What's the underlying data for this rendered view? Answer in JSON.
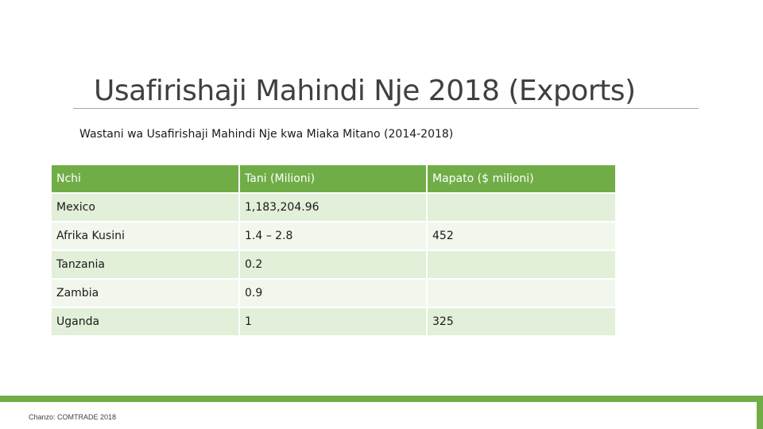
{
  "slide": {
    "title": "Usafirishaji Mahindi Nje 2018 (Exports)",
    "subtitle": "Wastani wa Usafirishaji Mahindi Nje kwa  Miaka Mitano (2014-2018)",
    "source": "Chanzo: COMTRADE 2018"
  },
  "table": {
    "headers": [
      "Nchi",
      "Tani (Milioni)",
      "Mapato ($ milioni)"
    ],
    "rows": [
      [
        "Mexico",
        "1,183,204.96",
        ""
      ],
      [
        "Afrika Kusini",
        "1.4 – 2.8",
        "452"
      ],
      [
        "Tanzania",
        "0.2",
        ""
      ],
      [
        "Zambia",
        "0.9",
        ""
      ],
      [
        "Uganda",
        "1",
        "325"
      ]
    ]
  },
  "colors": {
    "header_green": "#70ad47",
    "row_light": "#e2efd9",
    "row_lighter": "#f2f7ee",
    "title_gray": "#404040"
  }
}
